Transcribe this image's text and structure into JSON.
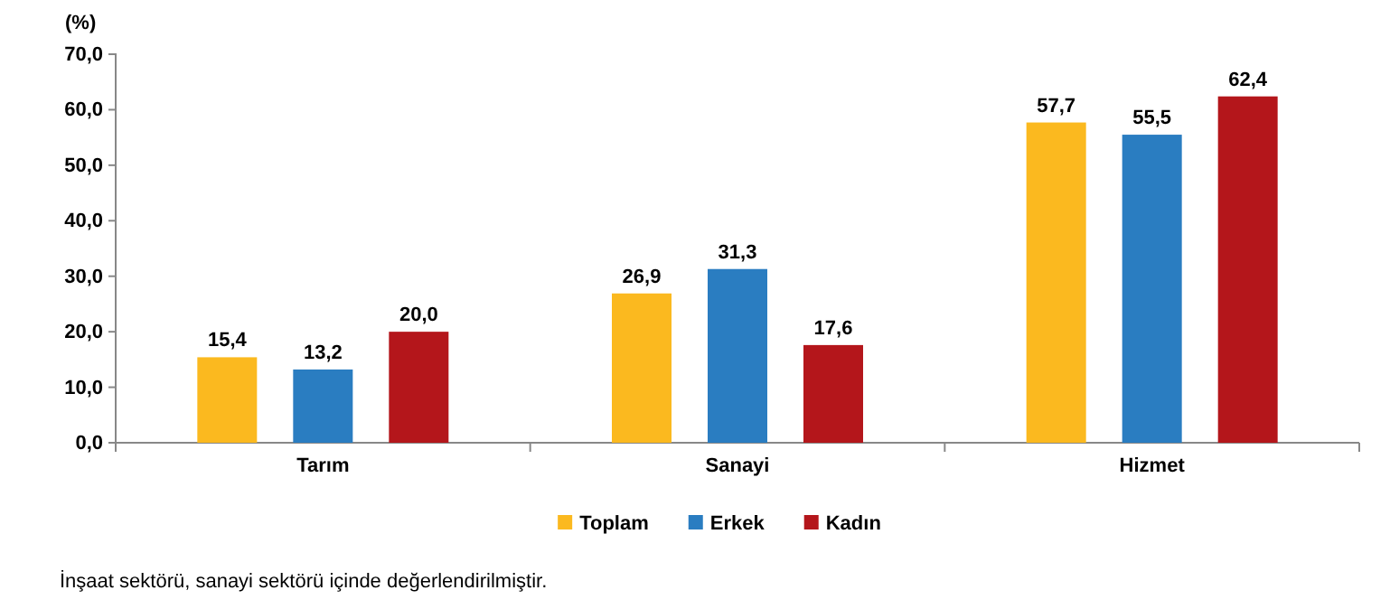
{
  "chart_data": {
    "type": "bar",
    "ylabel": "(%)",
    "categories": [
      "Tarım",
      "Sanayi",
      "Hizmet"
    ],
    "series": [
      {
        "name": "Toplam",
        "color": "#fbb91f",
        "values": [
          15.4,
          26.9,
          57.7
        ],
        "value_labels": [
          "15,4",
          "26,9",
          "57,7"
        ]
      },
      {
        "name": "Erkek",
        "color": "#2a7dc1",
        "values": [
          13.2,
          31.3,
          55.5
        ],
        "value_labels": [
          "13,2",
          "31,3",
          "55,5"
        ]
      },
      {
        "name": "Kadın",
        "color": "#b4161b",
        "values": [
          20.0,
          17.6,
          62.4
        ],
        "value_labels": [
          "20,0",
          "17,6",
          "62,4"
        ]
      }
    ],
    "ylim": [
      0,
      70
    ],
    "yticks": [
      {
        "value": 0,
        "label": "0,0"
      },
      {
        "value": 10,
        "label": "10,0"
      },
      {
        "value": 20,
        "label": "20,0"
      },
      {
        "value": 30,
        "label": "30,0"
      },
      {
        "value": 40,
        "label": "40,0"
      },
      {
        "value": 50,
        "label": "50,0"
      },
      {
        "value": 60,
        "label": "60,0"
      },
      {
        "value": 70,
        "label": "70,0"
      }
    ],
    "legend": "bottom",
    "annotations": [
      "İnşaat sektörü, sanayi sektörü içinde değerlendirilmiştir."
    ]
  }
}
